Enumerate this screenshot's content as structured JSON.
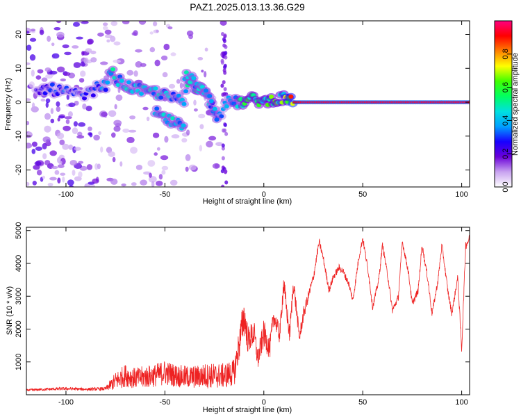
{
  "figure": {
    "title": "PAZ1.2025.013.13.36.G29"
  },
  "chart_data": [
    {
      "type": "heatmap",
      "title": "PAZ1.2025.013.13.36.G29",
      "xlabel": "Height of straight line (km)",
      "ylabel": "Frequency (Hz)",
      "xlim": [
        -120,
        104
      ],
      "ylim": [
        -25,
        24
      ],
      "x_ticks": [
        -100,
        -50,
        0,
        50,
        100
      ],
      "y_ticks": [
        -20,
        -10,
        0,
        10,
        20
      ],
      "grid": false,
      "colorbar": {
        "label": "Normalized spectral amplitude",
        "range": [
          0.0,
          1.0
        ],
        "ticks": [
          0.0,
          0.2,
          0.4,
          0.6,
          0.8
        ],
        "tick_labels": [
          "0.0",
          "0.2",
          "0.4",
          "0.6",
          "0.8"
        ],
        "colors": [
          "#ffffff",
          "#c8a2f0",
          "#6a00d8",
          "#1800ff",
          "#00a0ff",
          "#00e0e0",
          "#00ff60",
          "#40ff00",
          "#ffff00",
          "#ff8000",
          "#ff0000",
          "#ff0080"
        ]
      },
      "ridge": {
        "x": [
          -115,
          -110,
          -100,
          -95,
          -90,
          -85,
          -80,
          -77,
          -75,
          -70,
          -65,
          -60,
          -55,
          -50,
          -45,
          -40,
          -38,
          -35,
          -30,
          -27,
          -25,
          -22,
          -20,
          -15,
          -10,
          -5,
          0,
          5,
          10,
          15,
          20,
          30,
          40,
          50,
          60,
          70,
          80,
          90,
          100,
          104
        ],
        "freq": [
          3,
          4,
          3,
          2,
          2,
          4,
          5,
          9,
          7,
          5,
          4,
          3,
          3,
          2,
          1,
          0,
          7,
          5,
          3,
          0,
          -2,
          -4,
          0,
          0,
          0,
          1,
          0,
          1,
          1,
          0,
          0,
          0,
          0,
          0,
          0,
          0,
          0,
          0,
          0,
          0
        ],
        "amplitude": [
          0.25,
          0.3,
          0.3,
          0.25,
          0.25,
          0.3,
          0.35,
          0.45,
          0.4,
          0.4,
          0.4,
          0.4,
          0.4,
          0.4,
          0.35,
          0.35,
          0.45,
          0.45,
          0.4,
          0.35,
          0.35,
          0.3,
          0.3,
          0.4,
          0.5,
          0.5,
          0.5,
          0.55,
          0.55,
          0.9,
          0.95,
          0.95,
          0.95,
          0.95,
          0.95,
          0.95,
          0.95,
          0.95,
          0.95,
          0.95
        ]
      },
      "branch": {
        "x": [
          -40,
          -35,
          -30,
          -27,
          -25,
          -23
        ],
        "freq": [
          8,
          6,
          3,
          0,
          -3,
          -6
        ]
      },
      "lower_branch": {
        "x": [
          -55,
          -50,
          -45,
          -40
        ],
        "freq": [
          -3,
          -5,
          -6,
          -8
        ]
      }
    },
    {
      "type": "line",
      "xlabel": "Height of straight line (km)",
      "ylabel": "SNR (10 * v/v)",
      "xlim": [
        -120,
        104
      ],
      "ylim": [
        0,
        5100
      ],
      "x_ticks": [
        -100,
        -50,
        0,
        50,
        100
      ],
      "y_ticks": [
        1000,
        2000,
        3000,
        4000,
        5000
      ],
      "grid": false,
      "series": [
        {
          "color": "#ee2222",
          "envelope_x": [
            -120,
            -110,
            -100,
            -90,
            -80,
            -75,
            -70,
            -65,
            -60,
            -55,
            -50,
            -45,
            -40,
            -35,
            -30,
            -25,
            -20,
            -15,
            -13,
            -10,
            -8,
            -5,
            -3,
            0,
            3,
            5,
            8,
            10,
            13,
            15,
            18,
            20,
            25,
            28,
            30,
            33,
            35,
            38,
            40,
            43,
            45,
            48,
            50,
            53,
            55,
            58,
            60,
            63,
            65,
            68,
            70,
            73,
            75,
            78,
            80,
            83,
            85,
            88,
            90,
            93,
            95,
            98,
            100,
            102,
            104
          ],
          "envelope_y": [
            150,
            180,
            200,
            180,
            200,
            500,
            700,
            600,
            650,
            700,
            800,
            700,
            650,
            650,
            700,
            700,
            700,
            800,
            1500,
            2600,
            1800,
            2000,
            1200,
            2000,
            1500,
            2500,
            1900,
            3500,
            1900,
            3500,
            1800,
            2500,
            3600,
            4700,
            4200,
            3200,
            3600,
            3900,
            3800,
            3400,
            2900,
            4200,
            4800,
            3700,
            2700,
            3500,
            4600,
            3500,
            2600,
            3000,
            4700,
            3800,
            2800,
            3200,
            4600,
            3500,
            2500,
            3500,
            4600,
            3200,
            2500,
            3600,
            1400,
            4600,
            4800
          ],
          "noise": [
            50,
            60,
            70,
            60,
            80,
            400,
            500,
            450,
            500,
            500,
            550,
            500,
            500,
            500,
            550,
            550,
            550,
            600,
            700,
            900,
            600,
            600,
            500,
            600,
            500,
            400,
            400,
            500,
            400,
            400,
            300,
            300,
            200,
            150,
            150,
            150,
            150,
            150,
            150,
            150,
            150,
            150,
            150,
            150,
            150,
            150,
            150,
            150,
            150,
            150,
            150,
            150,
            150,
            150,
            150,
            150,
            150,
            150,
            150,
            150,
            150,
            150,
            200,
            200,
            200
          ]
        }
      ]
    }
  ]
}
